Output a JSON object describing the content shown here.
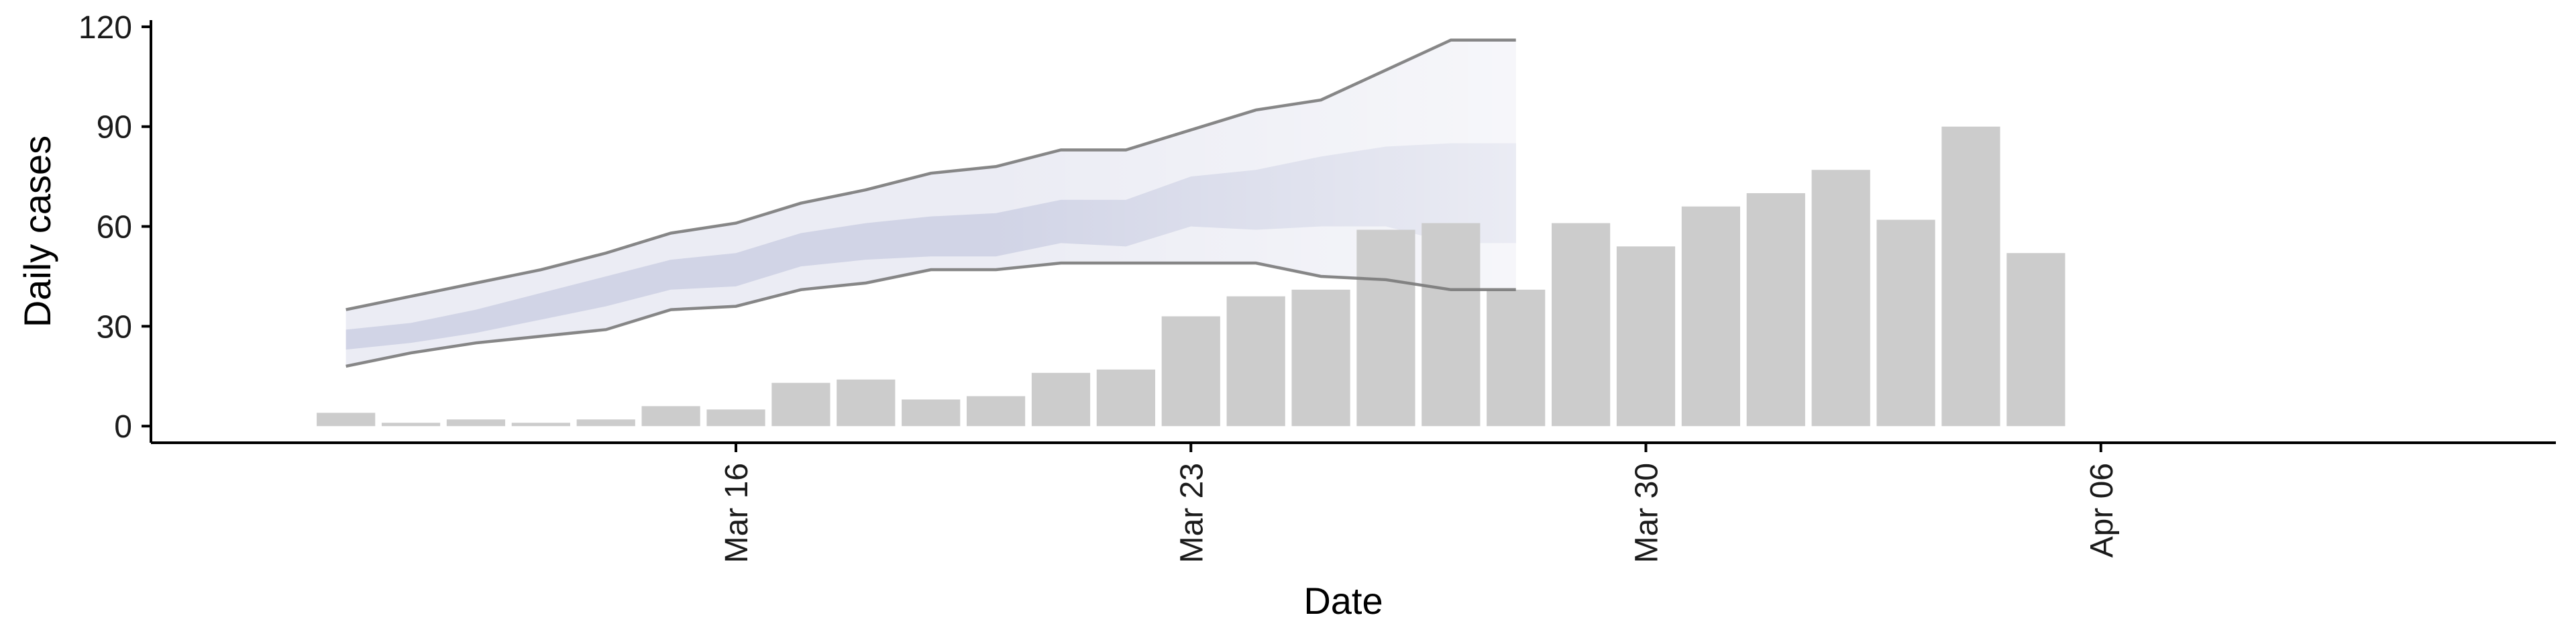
{
  "chart_data": {
    "type": "bar",
    "title": "",
    "xlabel": "Date",
    "ylabel": "Daily cases",
    "xlim": [
      "2020-03-07",
      "2020-04-13"
    ],
    "ylim": [
      -5,
      122
    ],
    "y_ticks": [
      0,
      30,
      60,
      90,
      120
    ],
    "x_ticks": [
      {
        "date": "2020-03-16",
        "label": "Mar 16"
      },
      {
        "date": "2020-03-23",
        "label": "Mar 23"
      },
      {
        "date": "2020-03-30",
        "label": "Mar 30"
      },
      {
        "date": "2020-04-06",
        "label": "Apr 06"
      }
    ],
    "grid": false,
    "legend": "none",
    "bar_series": {
      "x": [
        "2020-03-10",
        "2020-03-11",
        "2020-03-12",
        "2020-03-13",
        "2020-03-14",
        "2020-03-15",
        "2020-03-16",
        "2020-03-17",
        "2020-03-18",
        "2020-03-19",
        "2020-03-20",
        "2020-03-21",
        "2020-03-22",
        "2020-03-23",
        "2020-03-24",
        "2020-03-25",
        "2020-03-26",
        "2020-03-27",
        "2020-03-28",
        "2020-03-29",
        "2020-03-30",
        "2020-03-31",
        "2020-04-01",
        "2020-04-02",
        "2020-04-03",
        "2020-04-04",
        "2020-04-05",
        "2020-04-06",
        "2020-04-07"
      ],
      "values": [
        4,
        1,
        2,
        1,
        2,
        6,
        5,
        13,
        14,
        8,
        9,
        16,
        17,
        33,
        39,
        41,
        59,
        61,
        41,
        61,
        54,
        66,
        70,
        77,
        62,
        90,
        52,
        0,
        0
      ],
      "color": "#cccccc"
    },
    "forecast": {
      "x": [
        "2020-03-10",
        "2020-03-11",
        "2020-03-12",
        "2020-03-13",
        "2020-03-14",
        "2020-03-15",
        "2020-03-16",
        "2020-03-17",
        "2020-03-18",
        "2020-03-19",
        "2020-03-20",
        "2020-03-21",
        "2020-03-22",
        "2020-03-23",
        "2020-03-24",
        "2020-03-25",
        "2020-03-26",
        "2020-03-27",
        "2020-03-28"
      ],
      "outer_upper": [
        35,
        39,
        43,
        47,
        52,
        58,
        61,
        67,
        71,
        76,
        78,
        83,
        83,
        89,
        95,
        98,
        107,
        116,
        116
      ],
      "outer_lower": [
        18,
        22,
        25,
        27,
        29,
        35,
        36,
        41,
        43,
        47,
        47,
        49,
        49,
        49,
        49,
        45,
        44,
        41,
        41
      ],
      "inner_upper": [
        29,
        31,
        35,
        40,
        45,
        50,
        52,
        58,
        61,
        63,
        64,
        68,
        68,
        75,
        77,
        81,
        84,
        85,
        85
      ],
      "inner_lower": [
        23,
        25,
        28,
        32,
        36,
        41,
        42,
        48,
        50,
        51,
        51,
        55,
        54,
        60,
        59,
        60,
        60,
        55,
        55
      ],
      "outer_color": "#e8e9f2",
      "inner_color": "#ccd0e3",
      "line_color": "#7a7a7a"
    }
  }
}
